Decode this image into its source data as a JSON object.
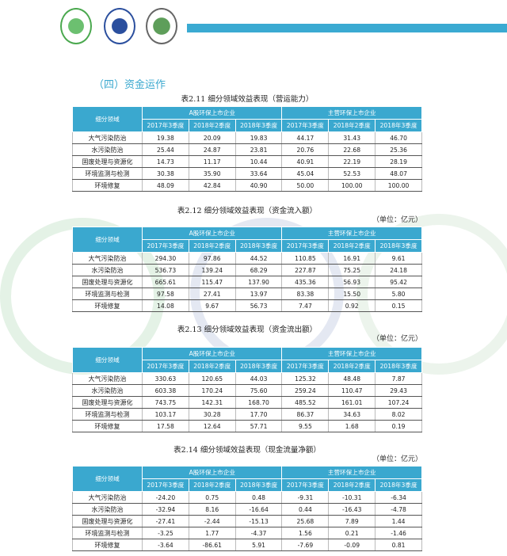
{
  "section_title": "（四）资金运作",
  "colors": {
    "accent": "#3aa8cf"
  },
  "tables": [
    {
      "title": "表2.11 细分领域效益表现（营运能力）",
      "unit": "",
      "corner": "细分领域",
      "groups": [
        "A股环保上市企业",
        "主营环保上市企业"
      ],
      "periods": [
        "2017年3季度",
        "2018年2季度",
        "2018年3季度",
        "2017年3季度",
        "2018年2季度",
        "2018年3季度"
      ],
      "rows": [
        {
          "label": "大气污染防治",
          "values": [
            "19.38",
            "20.09",
            "19.83",
            "44.17",
            "31.43",
            "46.70"
          ]
        },
        {
          "label": "水污染防治",
          "values": [
            "25.44",
            "24.87",
            "23.81",
            "20.76",
            "22.68",
            "25.36"
          ]
        },
        {
          "label": "固废处理与资源化",
          "values": [
            "14.73",
            "11.17",
            "10.44",
            "40.91",
            "22.19",
            "28.19"
          ]
        },
        {
          "label": "环境监测与检测",
          "values": [
            "30.38",
            "35.90",
            "33.64",
            "45.04",
            "52.53",
            "48.07"
          ]
        },
        {
          "label": "环境修复",
          "values": [
            "48.09",
            "42.84",
            "40.90",
            "50.00",
            "100.00",
            "100.00"
          ]
        }
      ]
    },
    {
      "title": "表2.12 细分领域效益表现（资金流入额）",
      "unit": "（单位：亿元）",
      "corner": "细分领域",
      "groups": [
        "A股环保上市企业",
        "主营环保上市企业"
      ],
      "periods": [
        "2017年3季度",
        "2018年2季度",
        "2018年3季度",
        "2017年3季度",
        "2018年2季度",
        "2018年3季度"
      ],
      "rows": [
        {
          "label": "大气污染防治",
          "values": [
            "294.30",
            "97.86",
            "44.52",
            "110.85",
            "16.91",
            "9.61"
          ]
        },
        {
          "label": "水污染防治",
          "values": [
            "536.73",
            "139.24",
            "68.29",
            "227.87",
            "75.25",
            "24.18"
          ]
        },
        {
          "label": "固废处理与资源化",
          "values": [
            "665.61",
            "115.47",
            "137.90",
            "435.36",
            "56.93",
            "95.42"
          ]
        },
        {
          "label": "环境监测与检测",
          "values": [
            "97.58",
            "27.41",
            "13.97",
            "83.38",
            "15.50",
            "5.80"
          ]
        },
        {
          "label": "环境修复",
          "values": [
            "14.08",
            "9.67",
            "56.73",
            "7.47",
            "0.92",
            "0.15"
          ]
        }
      ]
    },
    {
      "title": "表2.13 细分领域效益表现（资金流出额）",
      "unit": "（单位：亿元）",
      "corner": "细分领域",
      "groups": [
        "A股环保上市企业",
        "主营环保上市企业"
      ],
      "periods": [
        "2017年3季度",
        "2018年2季度",
        "2018年3季度",
        "2017年3季度",
        "2018年2季度",
        "2018年3季度"
      ],
      "rows": [
        {
          "label": "大气污染防治",
          "values": [
            "330.63",
            "120.65",
            "44.03",
            "125.32",
            "48.48",
            "7.87"
          ]
        },
        {
          "label": "水污染防治",
          "values": [
            "603.38",
            "170.24",
            "75.60",
            "259.24",
            "110.47",
            "29.43"
          ]
        },
        {
          "label": "固废处理与资源化",
          "values": [
            "743.75",
            "142.31",
            "168.70",
            "485.52",
            "161.01",
            "107.24"
          ]
        },
        {
          "label": "环境监测与检测",
          "values": [
            "103.17",
            "30.28",
            "17.70",
            "86.37",
            "34.63",
            "8.02"
          ]
        },
        {
          "label": "环境修复",
          "values": [
            "17.58",
            "12.64",
            "57.71",
            "9.55",
            "1.68",
            "0.19"
          ]
        }
      ]
    },
    {
      "title": "表2.14 细分领域效益表现（现金流量净额）",
      "unit": "（单位：亿元）",
      "corner": "细分领域",
      "groups": [
        "A股环保上市企业",
        "主营环保上市企业"
      ],
      "periods": [
        "2017年3季度",
        "2018年2季度",
        "2018年3季度",
        "2017年3季度",
        "2018年2季度",
        "2018年3季度"
      ],
      "rows": [
        {
          "label": "大气污染防治",
          "values": [
            "-24.20",
            "0.75",
            "0.48",
            "-9.31",
            "-10.31",
            "-6.34"
          ]
        },
        {
          "label": "水污染防治",
          "values": [
            "-32.94",
            "8.16",
            "-16.64",
            "0.44",
            "-16.43",
            "-4.78"
          ]
        },
        {
          "label": "固废处理与资源化",
          "values": [
            "-27.41",
            "-2.44",
            "-15.13",
            "25.68",
            "7.89",
            "1.44"
          ]
        },
        {
          "label": "环境监测与检测",
          "values": [
            "-3.25",
            "1.77",
            "-4.37",
            "1.56",
            "0.21",
            "-1.46"
          ]
        },
        {
          "label": "环境修复",
          "values": [
            "-3.64",
            "-86.61",
            "5.91",
            "-7.69",
            "-0.09",
            "0.81"
          ]
        }
      ]
    }
  ]
}
